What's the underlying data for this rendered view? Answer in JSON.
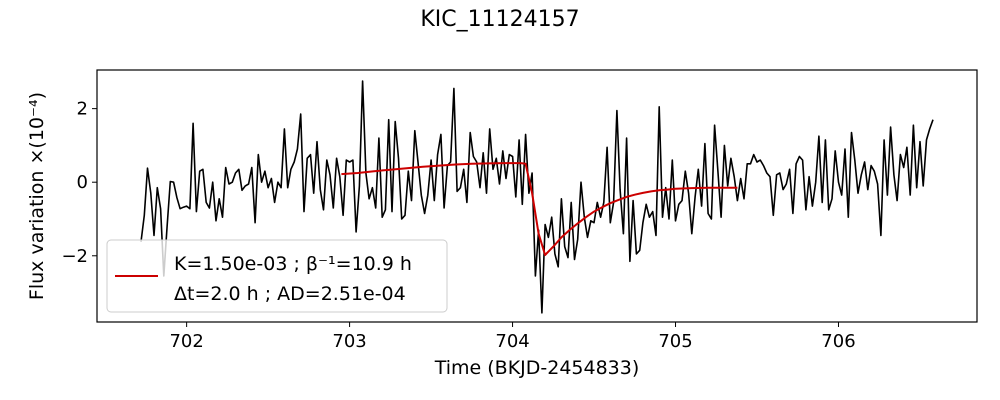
{
  "chart_data": {
    "type": "line",
    "title": "KIC_11124157",
    "xlabel": "Time (BKJD-2454833)",
    "ylabel": "Flux variation ×(10⁻⁴)",
    "xlim": [
      701.45,
      706.85
    ],
    "ylim": [
      -3.8,
      3.05
    ],
    "x_ticks": [
      702,
      703,
      704,
      705,
      706
    ],
    "y_ticks": [
      -2,
      0,
      2
    ],
    "x_tick_labels": [
      "702",
      "703",
      "704",
      "705",
      "706"
    ],
    "y_tick_labels": [
      "−2",
      "0",
      "2"
    ],
    "grid": false,
    "legend_position": "lower-left",
    "legend": {
      "line1": "K=1.50e-03 ; β⁻¹=10.9 h",
      "line2": "Δt=2.0 h ; AD=2.51e-04"
    },
    "colors": {
      "data": "#000000",
      "model": "#cc0000"
    },
    "series": [
      {
        "values": [
          [
            701.72,
            -1.62
          ],
          [
            701.74,
            -0.9
          ],
          [
            701.76,
            0.38
          ],
          [
            701.78,
            -0.3
          ],
          [
            701.8,
            -1.45
          ],
          [
            701.82,
            -0.15
          ],
          [
            701.84,
            -0.72
          ],
          [
            701.86,
            -2.55
          ],
          [
            701.88,
            -1.2
          ],
          [
            701.9,
            0.02
          ],
          [
            701.92,
            0.0
          ],
          [
            701.94,
            -0.42
          ],
          [
            701.96,
            -0.72
          ],
          [
            701.98,
            -0.68
          ],
          [
            702.0,
            -0.65
          ],
          [
            702.02,
            -0.72
          ],
          [
            702.04,
            1.6
          ],
          [
            702.06,
            -0.8
          ],
          [
            702.08,
            0.3
          ],
          [
            702.1,
            0.35
          ],
          [
            702.12,
            -0.55
          ],
          [
            702.14,
            -0.7
          ],
          [
            702.16,
            0.0
          ],
          [
            702.18,
            -1.05
          ],
          [
            702.2,
            -0.45
          ],
          [
            702.22,
            -0.95
          ],
          [
            702.24,
            0.4
          ],
          [
            702.26,
            -0.05
          ],
          [
            702.28,
            0.0
          ],
          [
            702.3,
            0.25
          ],
          [
            702.32,
            0.35
          ],
          [
            702.34,
            -0.22
          ],
          [
            702.36,
            -0.1
          ],
          [
            702.38,
            -0.05
          ],
          [
            702.4,
            0.4
          ],
          [
            702.42,
            -1.1
          ],
          [
            702.44,
            0.75
          ],
          [
            702.46,
            0.0
          ],
          [
            702.48,
            0.3
          ],
          [
            702.5,
            -0.15
          ],
          [
            702.52,
            0.1
          ],
          [
            702.54,
            -0.55
          ],
          [
            702.56,
            0.0
          ],
          [
            702.58,
            -0.15
          ],
          [
            702.6,
            1.45
          ],
          [
            702.62,
            -0.15
          ],
          [
            702.64,
            0.35
          ],
          [
            702.66,
            0.55
          ],
          [
            702.68,
            0.9
          ],
          [
            702.7,
            1.85
          ],
          [
            702.72,
            -0.8
          ],
          [
            702.74,
            0.65
          ],
          [
            702.76,
            0.75
          ],
          [
            702.78,
            -0.3
          ],
          [
            702.8,
            1.1
          ],
          [
            702.82,
            -0.2
          ],
          [
            702.84,
            -0.75
          ],
          [
            702.86,
            0.6
          ],
          [
            702.88,
            0.2
          ],
          [
            702.9,
            -0.7
          ],
          [
            702.92,
            0.65
          ],
          [
            702.94,
            0.15
          ],
          [
            702.96,
            -0.9
          ],
          [
            702.98,
            0.6
          ],
          [
            703.0,
            0.55
          ],
          [
            703.02,
            0.6
          ],
          [
            703.04,
            -1.35
          ],
          [
            703.06,
            -0.1
          ],
          [
            703.08,
            2.75
          ],
          [
            703.1,
            0.25
          ],
          [
            703.12,
            -0.45
          ],
          [
            703.14,
            -0.15
          ],
          [
            703.16,
            -0.7
          ],
          [
            703.18,
            1.2
          ],
          [
            703.2,
            -0.95
          ],
          [
            703.22,
            -0.75
          ],
          [
            703.24,
            1.7
          ],
          [
            703.26,
            -0.8
          ],
          [
            703.28,
            1.65
          ],
          [
            703.3,
            0.65
          ],
          [
            703.32,
            -1.0
          ],
          [
            703.34,
            -0.9
          ],
          [
            703.36,
            0.3
          ],
          [
            703.38,
            -0.5
          ],
          [
            703.4,
            1.4
          ],
          [
            703.42,
            0.55
          ],
          [
            703.44,
            -0.35
          ],
          [
            703.46,
            -0.85
          ],
          [
            703.48,
            -0.35
          ],
          [
            703.5,
            0.6
          ],
          [
            703.52,
            -0.5
          ],
          [
            703.54,
            0.75
          ],
          [
            703.56,
            1.3
          ],
          [
            703.58,
            -0.7
          ],
          [
            703.6,
            0.45
          ],
          [
            703.62,
            0.55
          ],
          [
            703.64,
            2.55
          ],
          [
            703.66,
            -0.25
          ],
          [
            703.68,
            -0.15
          ],
          [
            703.7,
            0.35
          ],
          [
            703.72,
            -0.55
          ],
          [
            703.74,
            1.35
          ],
          [
            703.76,
            0.7
          ],
          [
            703.78,
            0.55
          ],
          [
            703.8,
            -0.15
          ],
          [
            703.82,
            0.8
          ],
          [
            703.84,
            -0.3
          ],
          [
            703.86,
            1.45
          ],
          [
            703.88,
            0.35
          ],
          [
            703.9,
            0.65
          ],
          [
            703.92,
            -0.05
          ],
          [
            703.94,
            0.85
          ],
          [
            703.96,
            0.1
          ],
          [
            703.98,
            0.75
          ],
          [
            704.0,
            0.7
          ],
          [
            704.02,
            -0.4
          ],
          [
            704.04,
            1.15
          ],
          [
            704.06,
            -0.6
          ],
          [
            704.08,
            1.3
          ],
          [
            704.1,
            -0.3
          ],
          [
            704.12,
            0.25
          ],
          [
            704.14,
            -2.55
          ],
          [
            704.16,
            -1.3
          ],
          [
            704.18,
            -3.55
          ],
          [
            704.2,
            -1.15
          ],
          [
            704.22,
            -1.5
          ],
          [
            704.24,
            -0.95
          ],
          [
            704.26,
            -1.95
          ],
          [
            704.28,
            -2.3
          ],
          [
            704.3,
            -0.45
          ],
          [
            704.32,
            -1.75
          ],
          [
            704.34,
            -2.05
          ],
          [
            704.36,
            -0.55
          ],
          [
            704.38,
            -2.1
          ],
          [
            704.4,
            -1.55
          ],
          [
            704.42,
            0.0
          ],
          [
            704.44,
            -0.95
          ],
          [
            704.46,
            -1.5
          ],
          [
            704.48,
            -1.05
          ],
          [
            704.5,
            -1.1
          ],
          [
            704.52,
            -0.55
          ],
          [
            704.54,
            -0.95
          ],
          [
            704.56,
            -0.55
          ],
          [
            704.58,
            0.95
          ],
          [
            704.6,
            -1.1
          ],
          [
            704.62,
            -0.55
          ],
          [
            704.64,
            1.95
          ],
          [
            704.66,
            -0.2
          ],
          [
            704.68,
            -1.4
          ],
          [
            704.7,
            1.2
          ],
          [
            704.72,
            -2.15
          ],
          [
            704.74,
            -0.5
          ],
          [
            704.76,
            -1.95
          ],
          [
            704.78,
            -1.85
          ],
          [
            704.8,
            -1.1
          ],
          [
            704.82,
            -0.6
          ],
          [
            704.84,
            -0.95
          ],
          [
            704.86,
            -0.8
          ],
          [
            704.88,
            -1.45
          ],
          [
            704.9,
            2.05
          ],
          [
            704.92,
            -0.95
          ],
          [
            704.94,
            -0.15
          ],
          [
            704.96,
            -1.0
          ],
          [
            704.98,
            0.6
          ],
          [
            705.0,
            -1.05
          ],
          [
            705.02,
            -0.6
          ],
          [
            705.04,
            -0.5
          ],
          [
            705.06,
            0.3
          ],
          [
            705.08,
            -0.3
          ],
          [
            705.1,
            -1.4
          ],
          [
            705.12,
            -0.4
          ],
          [
            705.14,
            0.35
          ],
          [
            705.16,
            -0.65
          ],
          [
            705.18,
            1.05
          ],
          [
            705.2,
            -0.85
          ],
          [
            705.22,
            -1.0
          ],
          [
            705.24,
            1.55
          ],
          [
            705.26,
            0.3
          ],
          [
            705.28,
            -0.95
          ],
          [
            705.3,
            1.0
          ],
          [
            705.32,
            -0.1
          ],
          [
            705.34,
            0.65
          ],
          [
            705.36,
            0.15
          ],
          [
            705.38,
            -0.5
          ],
          [
            705.4,
            0.1
          ],
          [
            705.42,
            -0.45
          ],
          [
            705.44,
            0.5
          ],
          [
            705.46,
            0.5
          ],
          [
            705.48,
            0.75
          ],
          [
            705.5,
            0.55
          ],
          [
            705.52,
            0.6
          ],
          [
            705.54,
            0.45
          ],
          [
            705.56,
            0.25
          ],
          [
            705.58,
            0.15
          ],
          [
            705.6,
            -0.9
          ],
          [
            705.62,
            0.2
          ],
          [
            705.64,
            0.25
          ],
          [
            705.66,
            -0.2
          ],
          [
            705.68,
            -0.05
          ],
          [
            705.7,
            0.35
          ],
          [
            705.72,
            -0.85
          ],
          [
            705.74,
            0.5
          ],
          [
            705.76,
            0.7
          ],
          [
            705.78,
            0.6
          ],
          [
            705.8,
            -0.75
          ],
          [
            705.82,
            0.15
          ],
          [
            705.84,
            -0.65
          ],
          [
            705.86,
            0.0
          ],
          [
            705.88,
            1.25
          ],
          [
            705.9,
            -0.55
          ],
          [
            705.92,
            1.15
          ],
          [
            705.94,
            -0.75
          ],
          [
            705.96,
            -0.45
          ],
          [
            705.98,
            0.85
          ],
          [
            706.0,
            0.0
          ],
          [
            706.02,
            -0.35
          ],
          [
            706.04,
            0.9
          ],
          [
            706.06,
            -0.95
          ],
          [
            706.08,
            1.35
          ],
          [
            706.1,
            0.6
          ],
          [
            706.12,
            -0.3
          ],
          [
            706.14,
            0.2
          ],
          [
            706.16,
            0.55
          ],
          [
            706.18,
            -0.2
          ],
          [
            706.2,
            0.45
          ],
          [
            706.22,
            0.3
          ],
          [
            706.24,
            -0.05
          ],
          [
            706.26,
            -1.45
          ],
          [
            706.28,
            1.15
          ],
          [
            706.3,
            -0.35
          ],
          [
            706.32,
            1.5
          ],
          [
            706.34,
            0.2
          ],
          [
            706.36,
            -0.5
          ],
          [
            706.38,
            0.75
          ],
          [
            706.4,
            0.4
          ],
          [
            706.42,
            0.95
          ],
          [
            706.44,
            -0.35
          ],
          [
            706.46,
            1.55
          ],
          [
            706.48,
            -0.15
          ],
          [
            706.5,
            1.1
          ],
          [
            706.52,
            -0.1
          ],
          [
            706.54,
            1.15
          ],
          [
            706.56,
            1.45
          ],
          [
            706.58,
            1.7
          ]
        ]
      },
      {
        "name": "K=1.50e-03 ; β⁻¹=10.9 h",
        "values": [
          [
            702.95,
            0.22
          ],
          [
            703.05,
            0.25
          ],
          [
            703.15,
            0.3
          ],
          [
            703.25,
            0.34
          ],
          [
            703.35,
            0.38
          ],
          [
            703.45,
            0.42
          ],
          [
            703.55,
            0.45
          ],
          [
            703.65,
            0.48
          ],
          [
            703.75,
            0.5
          ],
          [
            703.85,
            0.51
          ],
          [
            703.95,
            0.52
          ],
          [
            704.05,
            0.52
          ],
          [
            704.08,
            0.5
          ],
          [
            704.12,
            -0.3
          ],
          [
            704.16,
            -1.4
          ],
          [
            704.2,
            -1.98
          ],
          [
            704.25,
            -1.75
          ],
          [
            704.3,
            -1.5
          ],
          [
            704.35,
            -1.3
          ],
          [
            704.4,
            -1.12
          ],
          [
            704.45,
            -0.95
          ],
          [
            704.5,
            -0.8
          ],
          [
            704.55,
            -0.68
          ],
          [
            704.6,
            -0.57
          ],
          [
            704.65,
            -0.48
          ],
          [
            704.7,
            -0.4
          ],
          [
            704.75,
            -0.34
          ],
          [
            704.8,
            -0.29
          ],
          [
            704.85,
            -0.25
          ],
          [
            704.9,
            -0.22
          ],
          [
            704.95,
            -0.2
          ],
          [
            705.0,
            -0.18
          ],
          [
            705.1,
            -0.16
          ],
          [
            705.2,
            -0.15
          ],
          [
            705.3,
            -0.15
          ],
          [
            705.38,
            -0.15
          ]
        ]
      }
    ]
  }
}
